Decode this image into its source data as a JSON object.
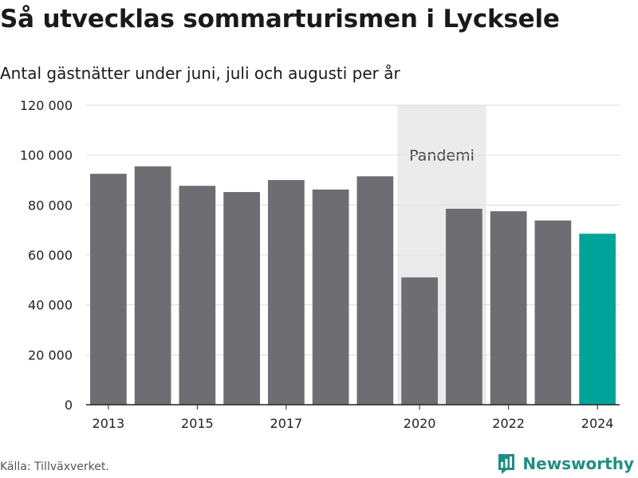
{
  "chart_data": {
    "type": "bar",
    "title": "Så utvecklas sommarturismen i Lycksele",
    "subtitle": "Antal gästnätter under juni, juli och augusti per år",
    "x": [
      2013,
      2014,
      2015,
      2016,
      2017,
      2018,
      2019,
      2020,
      2021,
      2022,
      2023,
      2024
    ],
    "values": [
      92500,
      95500,
      87700,
      85200,
      90000,
      86200,
      91500,
      51000,
      78500,
      77500,
      73800,
      68500
    ],
    "x_tick_labels": [
      "2013",
      "2015",
      "2017",
      "2020",
      "2022",
      "2024"
    ],
    "x_tick_values": [
      2013,
      2015,
      2017,
      2020,
      2022,
      2024
    ],
    "ylim": [
      0,
      120000
    ],
    "y_tick_values": [
      0,
      20000,
      40000,
      60000,
      80000,
      100000,
      120000
    ],
    "y_tick_labels": [
      "0",
      "20 000",
      "40 000",
      "60 000",
      "80 000",
      "100 000",
      "120 000"
    ],
    "grid": true,
    "bar_color": "#6e6d72",
    "highlight_color": "#00a39a",
    "highlight_x": 2024,
    "shaded_region": {
      "x_from": 2020,
      "x_to": 2021,
      "label": "Pandemi",
      "color": "#ebebeb"
    }
  },
  "footer": {
    "source": "Källa: Tillväxverket.",
    "brand": "Newsworthy",
    "brand_color": "#1f8f84",
    "brand_icon": "bar-chart-logo-icon"
  }
}
